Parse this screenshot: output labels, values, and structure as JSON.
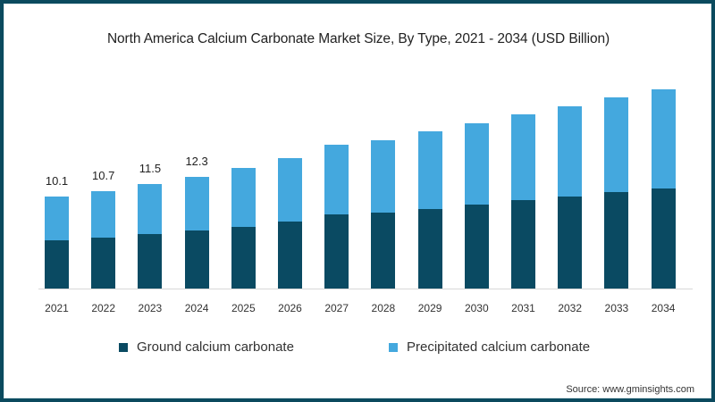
{
  "title": "North America Calcium Carbonate Market Size, By Type, 2021 - 2034 (USD Billion)",
  "legend": [
    {
      "label": "Ground calcium carbonate",
      "color": "#0a4a62"
    },
    {
      "label": "Precipitated calcium carbonate",
      "color": "#44a8de"
    }
  ],
  "source": "Source: www.gminsights.com",
  "colors": {
    "frame": "#0b4a5e",
    "ground": "#0a4a62",
    "precipitated": "#44a8de"
  },
  "chart_data": {
    "type": "bar",
    "stacked": true,
    "title": "North America Calcium Carbonate Market Size, By Type, 2021 - 2034 (USD Billion)",
    "xlabel": "",
    "ylabel": "USD Billion",
    "categories": [
      "2021",
      "2022",
      "2023",
      "2024",
      "2025",
      "2026",
      "2027",
      "2028",
      "2029",
      "2030",
      "2031",
      "2032",
      "2033",
      "2034"
    ],
    "series": [
      {
        "name": "Ground calcium carbonate",
        "values": [
          5.3,
          5.6,
          6.0,
          6.4,
          6.8,
          7.4,
          8.1,
          8.3,
          8.7,
          9.2,
          9.7,
          10.1,
          10.6,
          11.0
        ]
      },
      {
        "name": "Precipitated calcium carbonate",
        "values": [
          4.8,
          5.1,
          5.5,
          5.9,
          6.4,
          6.9,
          7.7,
          8.0,
          8.6,
          8.9,
          9.4,
          9.9,
          10.4,
          10.9
        ]
      }
    ],
    "totals": [
      10.1,
      10.7,
      11.5,
      12.3,
      13.2,
      14.3,
      15.8,
      16.3,
      17.3,
      18.1,
      19.1,
      20.0,
      21.0,
      21.9
    ],
    "data_labels": {
      "2021": "10.1",
      "2022": "10.7",
      "2023": "11.5",
      "2024": "12.3"
    },
    "grid": false,
    "legend_position": "bottom",
    "ylim": [
      0,
      23
    ]
  }
}
